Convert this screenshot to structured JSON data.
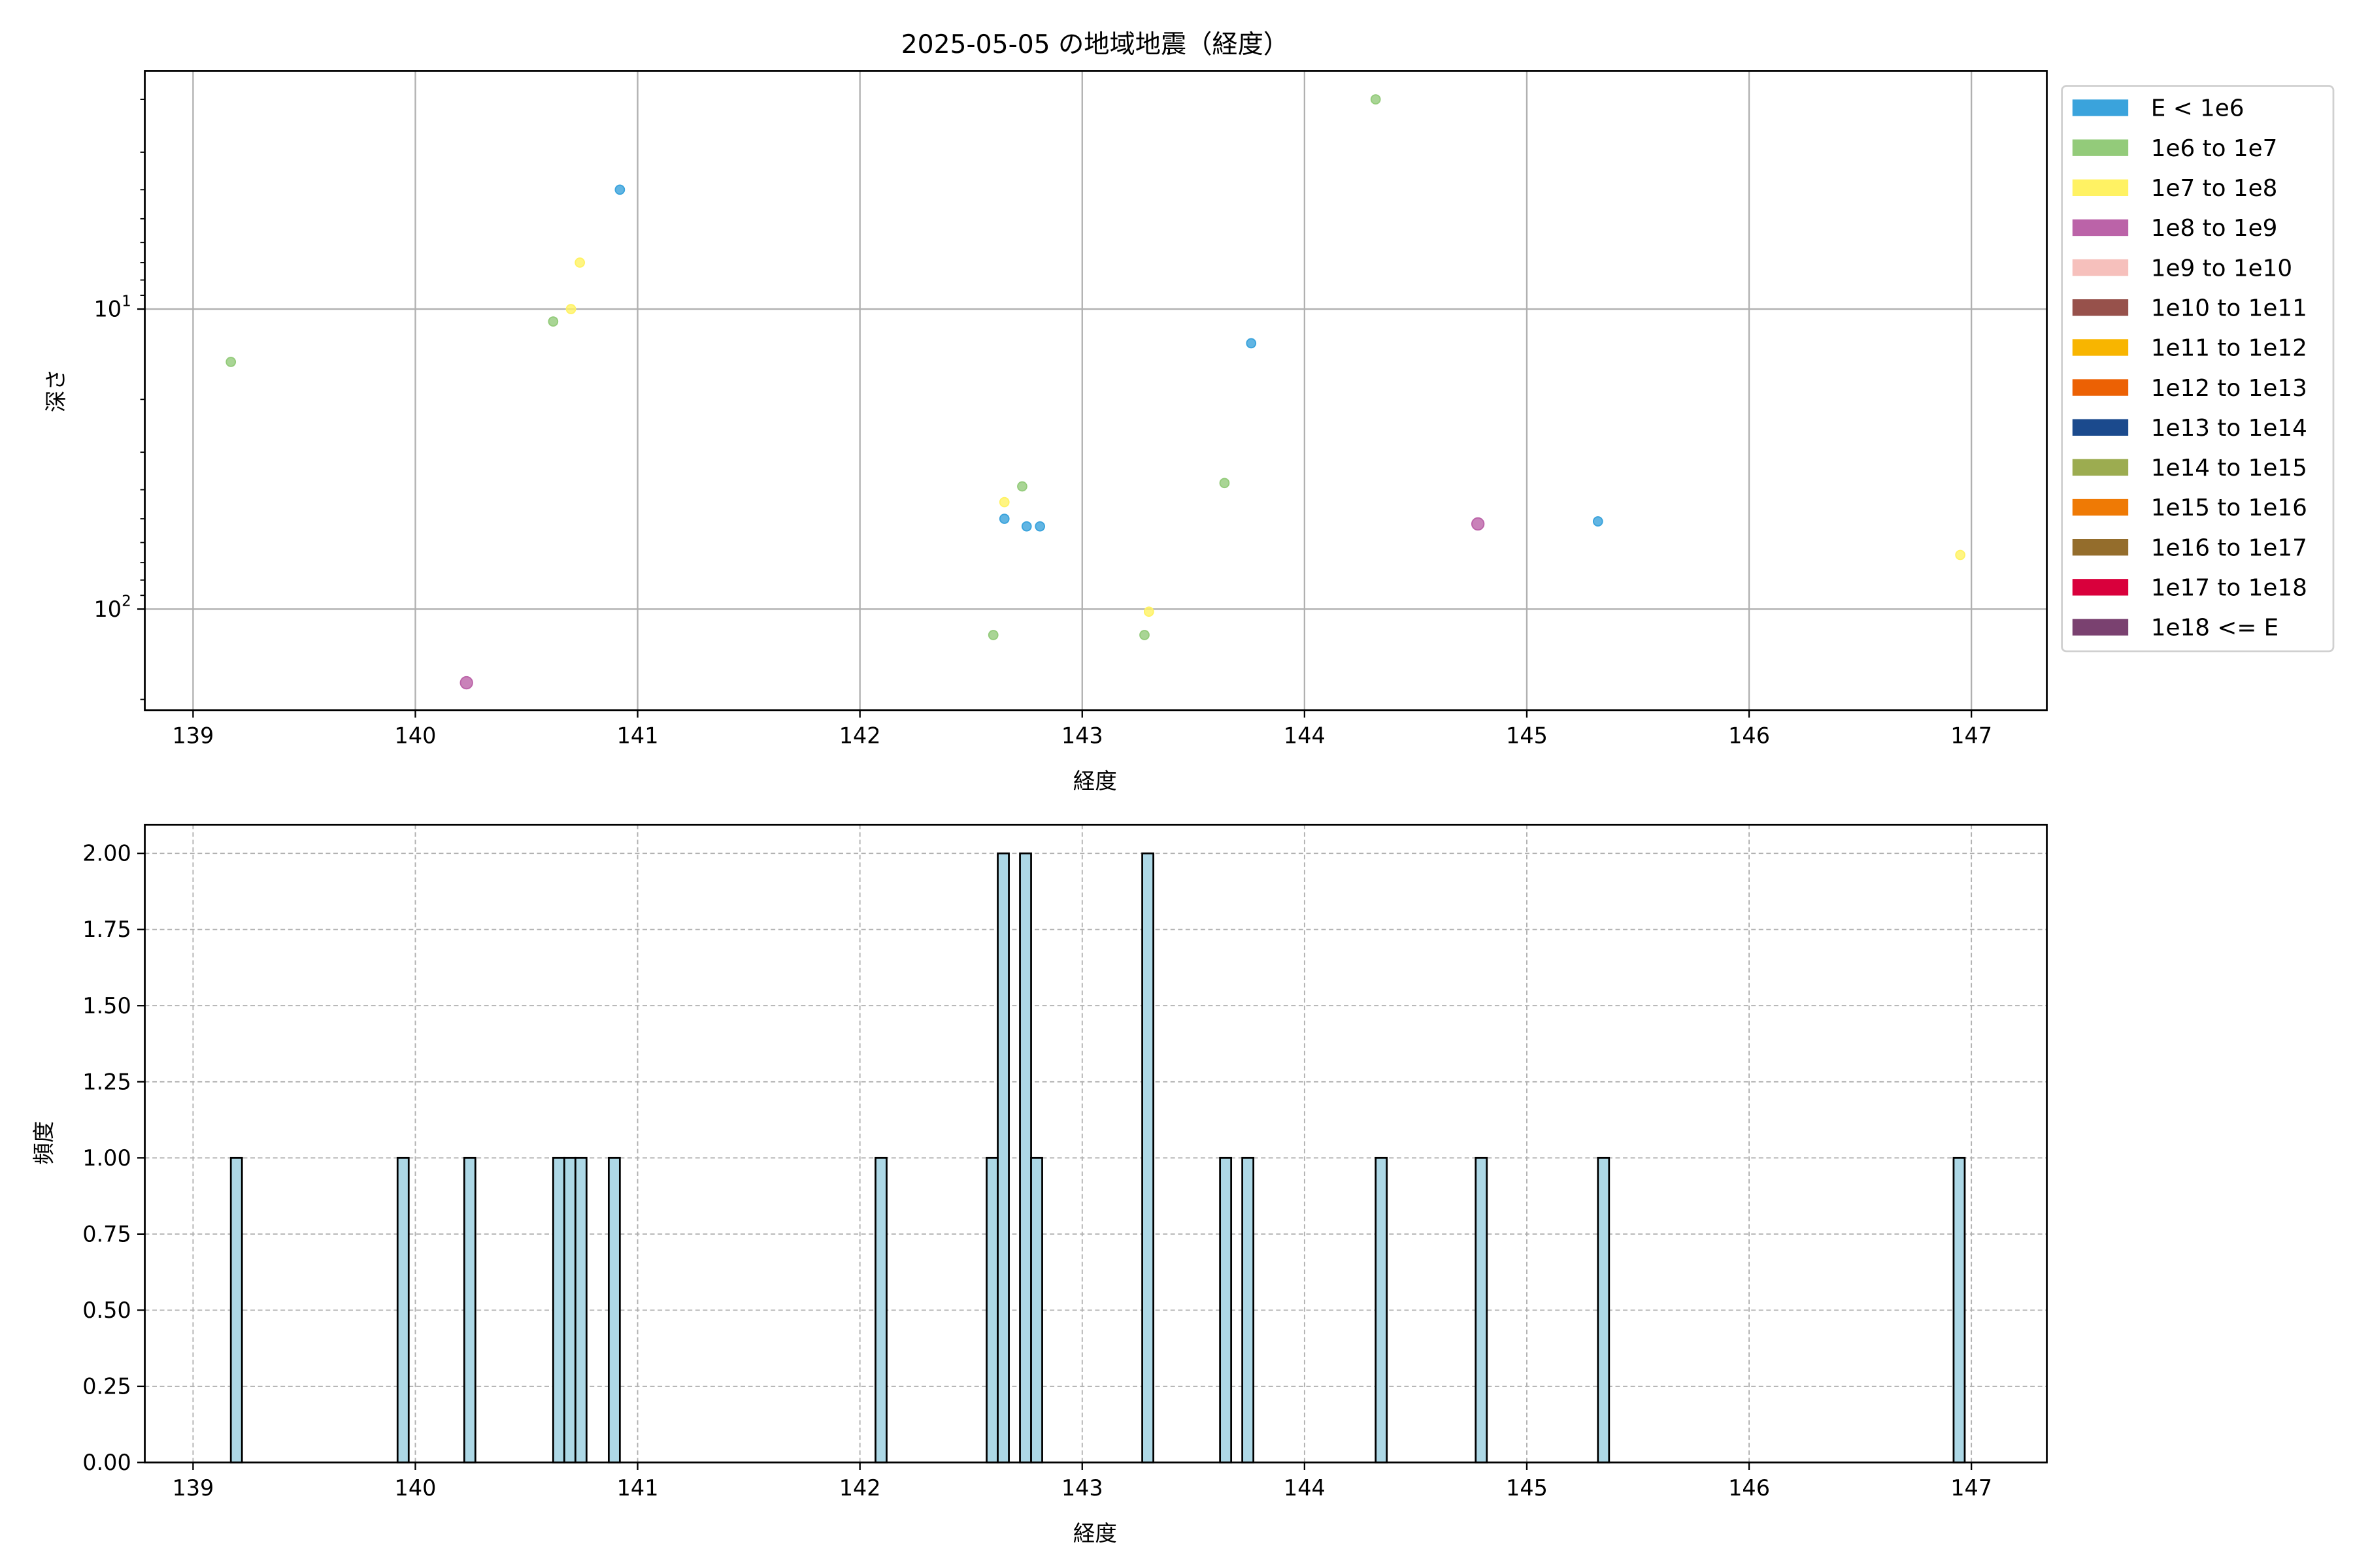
{
  "chart_data": [
    {
      "type": "scatter",
      "title": "2025-05-05 の地域地震（経度）",
      "xlabel": "経度",
      "ylabel": "深さ",
      "xlim": [
        138.78,
        147.35
      ],
      "ylim": [
        217,
        1.6
      ],
      "yscale": "log",
      "y_inverted": true,
      "grid": true,
      "xticks": [
        139,
        140,
        141,
        142,
        143,
        144,
        145,
        146,
        147
      ],
      "xtick_labels": [
        "139",
        "140",
        "141",
        "142",
        "143",
        "144",
        "145",
        "146",
        "147"
      ],
      "yticks": [
        10,
        100
      ],
      "ytick_labels": [
        {
          "base": "10",
          "exp": "1"
        },
        {
          "base": "10",
          "exp": "2"
        }
      ],
      "legend_placement": "outside-right",
      "legend": [
        {
          "label": "E < 1e6",
          "color": "#3aa3dc"
        },
        {
          "label": "1e6 to 1e7",
          "color": "#93cb7a"
        },
        {
          "label": "1e7 to 1e8",
          "color": "#fff263"
        },
        {
          "label": "1e8 to 1e9",
          "color": "#bb63a8"
        },
        {
          "label": "1e9 to 1e10",
          "color": "#f6c0bc"
        },
        {
          "label": "1e10 to 1e11",
          "color": "#97514b"
        },
        {
          "label": "1e11 to 1e12",
          "color": "#f8b500"
        },
        {
          "label": "1e12 to 1e13",
          "color": "#ec6104"
        },
        {
          "label": "1e13 to 1e14",
          "color": "#1b4a8d"
        },
        {
          "label": "1e14 to 1e15",
          "color": "#9cac50"
        },
        {
          "label": "1e15 to 1e16",
          "color": "#ef7a05"
        },
        {
          "label": "1e16 to 1e17",
          "color": "#946d2c"
        },
        {
          "label": "1e17 to 1e18",
          "color": "#d9003c"
        },
        {
          "label": "1e18 <= E",
          "color": "#7a4170"
        }
      ],
      "points": [
        {
          "x": 139.17,
          "y": 15,
          "cls": 1
        },
        {
          "x": 140.92,
          "y": 4.0,
          "cls": 0
        },
        {
          "x": 140.74,
          "y": 7.0,
          "cls": 2
        },
        {
          "x": 140.7,
          "y": 10,
          "cls": 2
        },
        {
          "x": 140.62,
          "y": 11,
          "cls": 1
        },
        {
          "x": 140.23,
          "y": 176,
          "cls": 3
        },
        {
          "x": 144.32,
          "y": 2.0,
          "cls": 1
        },
        {
          "x": 143.76,
          "y": 13,
          "cls": 0
        },
        {
          "x": 143.64,
          "y": 38,
          "cls": 1
        },
        {
          "x": 142.65,
          "y": 44,
          "cls": 2
        },
        {
          "x": 142.73,
          "y": 39,
          "cls": 1
        },
        {
          "x": 142.65,
          "y": 50,
          "cls": 0
        },
        {
          "x": 142.75,
          "y": 53,
          "cls": 0
        },
        {
          "x": 142.81,
          "y": 53,
          "cls": 0
        },
        {
          "x": 144.78,
          "y": 52,
          "cls": 3
        },
        {
          "x": 145.32,
          "y": 51,
          "cls": 0
        },
        {
          "x": 146.95,
          "y": 66,
          "cls": 2
        },
        {
          "x": 143.3,
          "y": 102,
          "cls": 2
        },
        {
          "x": 142.6,
          "y": 122,
          "cls": 1
        },
        {
          "x": 143.28,
          "y": 122,
          "cls": 1
        }
      ]
    },
    {
      "type": "bar",
      "subtype": "histogram",
      "xlabel": "経度",
      "ylabel": "頻度",
      "xlim": [
        138.78,
        147.35
      ],
      "ylim": [
        0,
        2.1
      ],
      "grid": true,
      "bar_color": "#add8e6",
      "edge_color": "#000000",
      "bin_width": 0.05,
      "xticks": [
        139,
        140,
        141,
        142,
        143,
        144,
        145,
        146,
        147
      ],
      "xtick_labels": [
        "139",
        "140",
        "141",
        "142",
        "143",
        "144",
        "145",
        "146",
        "147"
      ],
      "yticks": [
        0,
        0.25,
        0.5,
        0.75,
        1.0,
        1.25,
        1.5,
        1.75,
        2.0
      ],
      "ytick_labels": [
        "0.00",
        "0.25",
        "0.50",
        "0.75",
        "1.00",
        "1.25",
        "1.50",
        "1.75",
        "2.00"
      ],
      "bins": [
        {
          "left": 139.17,
          "count": 1
        },
        {
          "left": 139.92,
          "count": 1
        },
        {
          "left": 140.22,
          "count": 1
        },
        {
          "left": 140.62,
          "count": 1
        },
        {
          "left": 140.67,
          "count": 1
        },
        {
          "left": 140.72,
          "count": 1
        },
        {
          "left": 140.87,
          "count": 1
        },
        {
          "left": 142.07,
          "count": 1
        },
        {
          "left": 142.57,
          "count": 1
        },
        {
          "left": 142.62,
          "count": 2
        },
        {
          "left": 142.72,
          "count": 2
        },
        {
          "left": 142.77,
          "count": 1
        },
        {
          "left": 143.27,
          "count": 2
        },
        {
          "left": 143.62,
          "count": 1
        },
        {
          "left": 143.72,
          "count": 1
        },
        {
          "left": 144.32,
          "count": 1
        },
        {
          "left": 144.77,
          "count": 1
        },
        {
          "left": 145.32,
          "count": 1
        },
        {
          "left": 146.92,
          "count": 1
        }
      ]
    }
  ]
}
